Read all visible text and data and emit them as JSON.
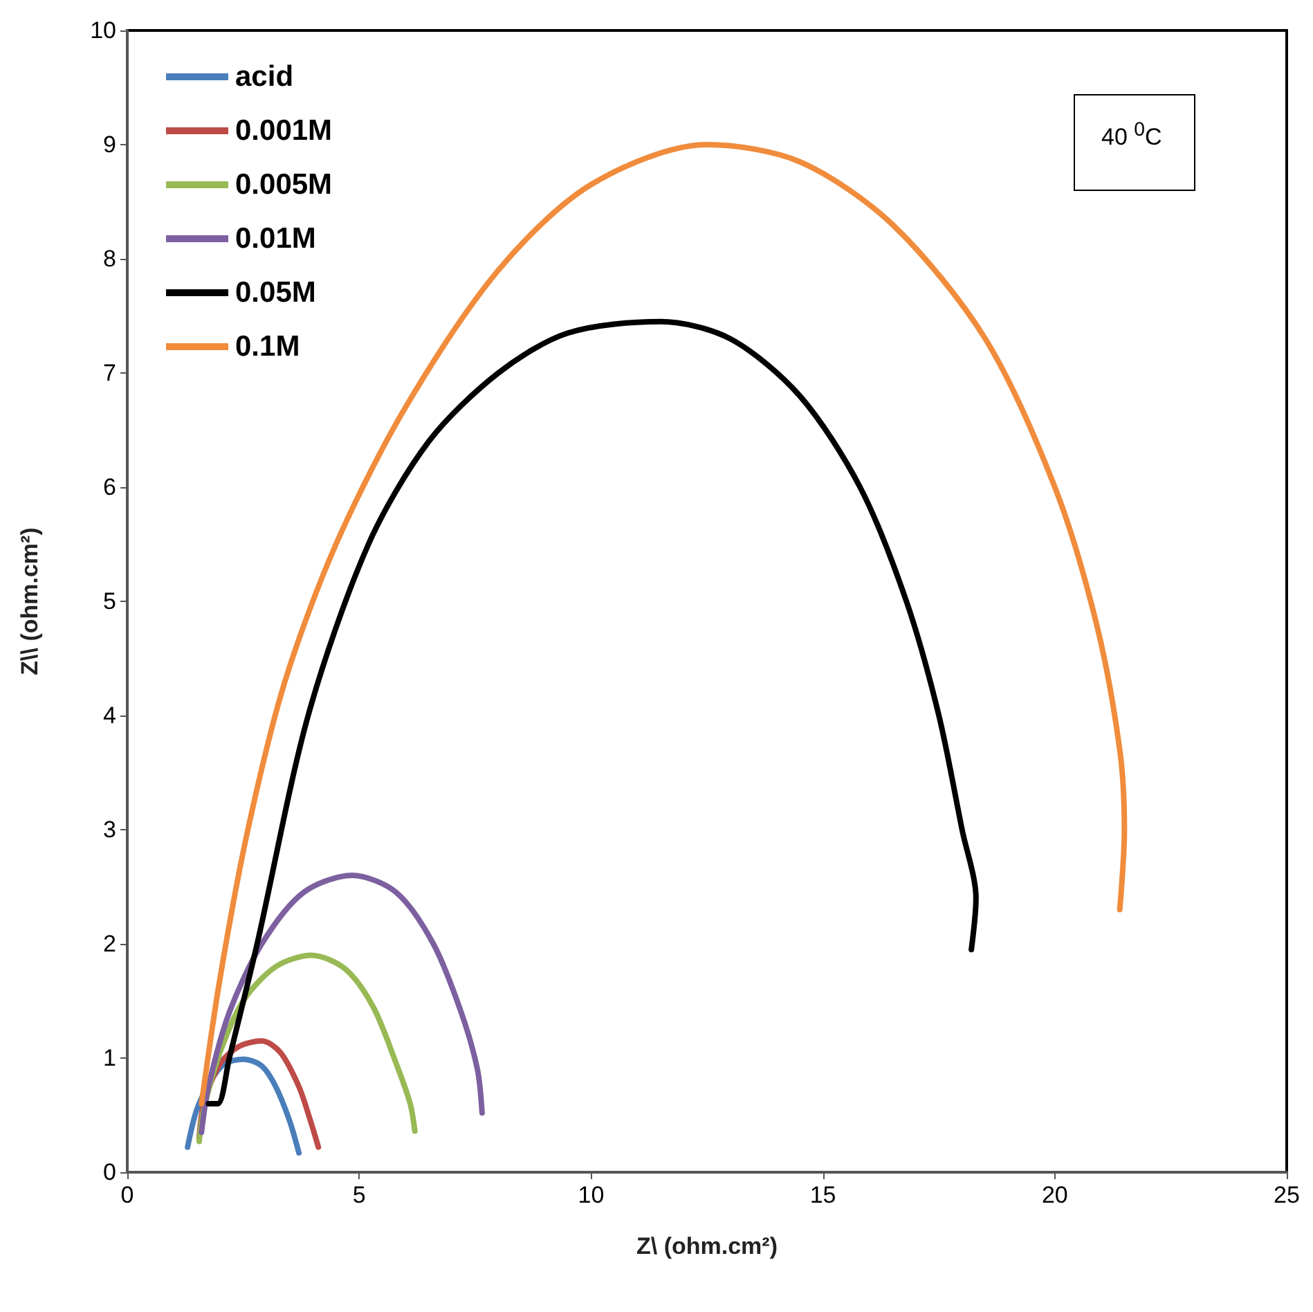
{
  "chart_data": {
    "type": "line",
    "xlabel": "Z\\ (ohm.cm²)",
    "ylabel": "Z\\\\ (ohm.cm²)",
    "xlim": [
      0,
      25
    ],
    "xticks": [
      0,
      5,
      10,
      15,
      20,
      25
    ],
    "ylim": [
      0,
      10
    ],
    "yticks": [
      0,
      1,
      2,
      3,
      4,
      5,
      6,
      7,
      8,
      9,
      10
    ],
    "grid": false,
    "legend": "top left",
    "marker": "none",
    "line_style": "solid",
    "annotations": [
      "40 $^{0}$C"
    ],
    "series": [
      {
        "name": "acid",
        "color": "#4a7ebb",
        "x": [
          1.3,
          1.5,
          1.8,
          2.1,
          2.5,
          2.9,
          3.2,
          3.5,
          3.7
        ],
        "values": [
          0.22,
          0.55,
          0.8,
          0.95,
          0.99,
          0.93,
          0.75,
          0.45,
          0.17
        ]
      },
      {
        "name": "0.001M",
        "color": "#be4b48",
        "x": [
          1.55,
          1.65,
          2.0,
          2.4,
          2.9,
          3.3,
          3.7,
          3.95,
          4.12
        ],
        "values": [
          0.3,
          0.6,
          0.95,
          1.1,
          1.15,
          1.05,
          0.75,
          0.45,
          0.22
        ]
      },
      {
        "name": "0.005M",
        "color": "#98b954",
        "x": [
          1.55,
          1.65,
          2.0,
          2.5,
          3.2,
          3.97,
          4.7,
          5.3,
          5.8,
          6.1,
          6.2
        ],
        "values": [
          0.27,
          0.55,
          1.05,
          1.5,
          1.8,
          1.9,
          1.78,
          1.45,
          0.95,
          0.6,
          0.36
        ]
      },
      {
        "name": "0.01M",
        "color": "#7d60a0",
        "x": [
          1.6,
          1.75,
          2.2,
          2.9,
          3.8,
          4.85,
          5.8,
          6.6,
          7.2,
          7.55,
          7.65
        ],
        "values": [
          0.35,
          0.75,
          1.4,
          2.0,
          2.45,
          2.6,
          2.45,
          2.0,
          1.4,
          0.9,
          0.52
        ]
      },
      {
        "name": "0.05M",
        "color": "#000000",
        "x": [
          1.75,
          1.95,
          2.2,
          2.8,
          3.9,
          5.2,
          6.5,
          8,
          9.5,
          11.5,
          13,
          14.5,
          15.8,
          16.8,
          17.5,
          18.0,
          18.3,
          18.2
        ],
        "values": [
          0.6,
          0.6,
          1.0,
          2.0,
          4.0,
          5.5,
          6.4,
          7.0,
          7.35,
          7.45,
          7.3,
          6.8,
          6.0,
          5.0,
          4.0,
          3.0,
          2.4,
          1.95
        ]
      },
      {
        "name": "0.1M",
        "color": "#f08c3c",
        "x": [
          1.6,
          2.0,
          2.6,
          3.4,
          4.5,
          6,
          8,
          10,
          12.5,
          14.5,
          16.5,
          18.5,
          20,
          20.9,
          21.4,
          21.5,
          21.4
        ],
        "values": [
          0.6,
          1.7,
          3.0,
          4.3,
          5.5,
          6.7,
          7.9,
          8.65,
          9.0,
          8.85,
          8.3,
          7.3,
          6.0,
          4.8,
          3.7,
          3.0,
          2.3
        ]
      }
    ]
  }
}
